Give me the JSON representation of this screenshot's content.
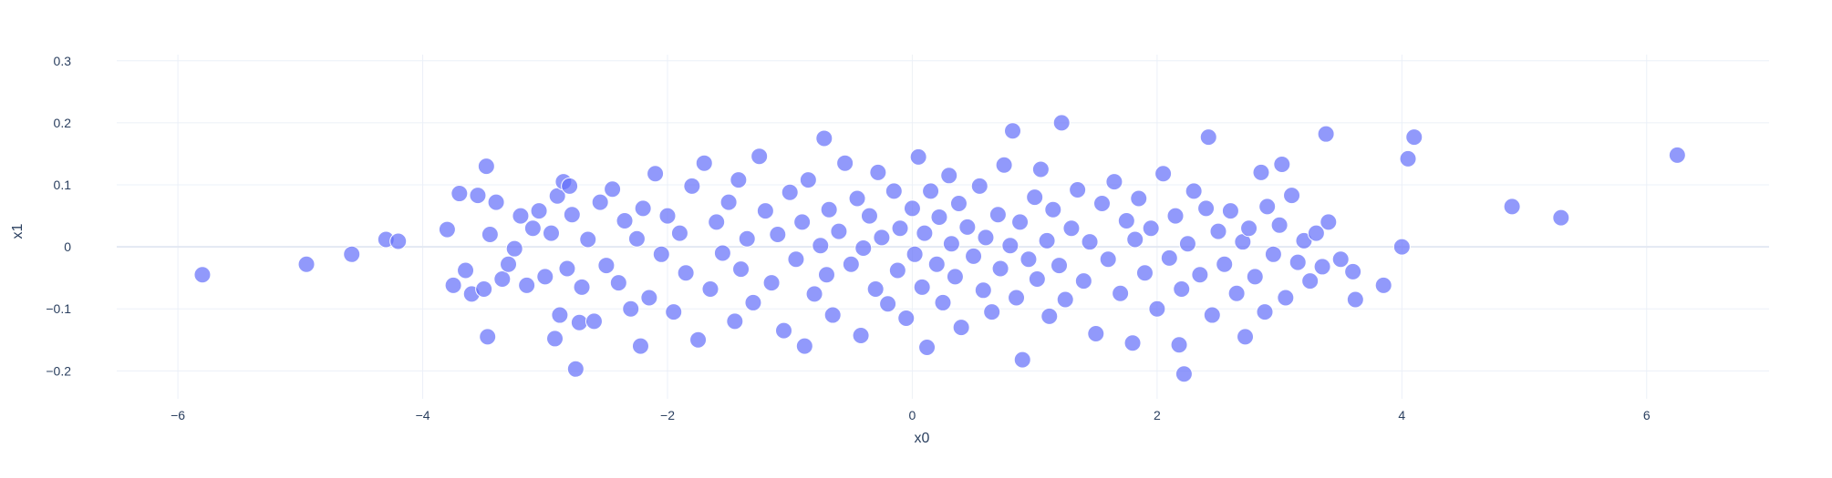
{
  "chart_data": {
    "type": "scatter",
    "xlabel": "x0",
    "ylabel": "x1",
    "xlim": [
      -6.5,
      7.0
    ],
    "ylim": [
      -0.245,
      0.31
    ],
    "x_ticks": [
      -6,
      -4,
      -2,
      0,
      2,
      4,
      6
    ],
    "x_tick_labels": [
      "−6",
      "−4",
      "−2",
      "0",
      "2",
      "4",
      "6"
    ],
    "y_ticks": [
      -0.2,
      -0.1,
      0,
      0.1,
      0.2,
      0.3
    ],
    "y_tick_labels": [
      "−0.2",
      "−0.1",
      "0",
      "0.1",
      "0.2",
      "0.3"
    ],
    "grid": true,
    "marker_color": "#636efa",
    "marker_opacity": 0.7,
    "marker_outline": "#ffffff",
    "marker_size_note": "large circles, uniform size",
    "series": [
      {
        "points": [
          [
            -5.8,
            -0.045
          ],
          [
            -4.95,
            -0.028
          ],
          [
            -4.58,
            -0.012
          ],
          [
            -4.3,
            0.012
          ],
          [
            -4.2,
            0.009
          ],
          [
            -3.8,
            0.028
          ],
          [
            -3.75,
            -0.062
          ],
          [
            -3.7,
            0.086
          ],
          [
            -3.65,
            -0.038
          ],
          [
            -3.6,
            -0.076
          ],
          [
            -3.55,
            0.083
          ],
          [
            -3.5,
            -0.068
          ],
          [
            -3.48,
            0.13
          ],
          [
            -3.47,
            -0.145
          ],
          [
            -3.45,
            0.02
          ],
          [
            -3.4,
            0.072
          ],
          [
            -3.35,
            -0.052
          ],
          [
            -3.3,
            -0.028
          ],
          [
            -3.25,
            -0.003
          ],
          [
            -3.2,
            0.05
          ],
          [
            -3.15,
            -0.062
          ],
          [
            -3.1,
            0.03
          ],
          [
            -3.05,
            0.058
          ],
          [
            -3.0,
            -0.048
          ],
          [
            -2.95,
            0.022
          ],
          [
            -2.92,
            -0.148
          ],
          [
            -2.9,
            0.082
          ],
          [
            -2.88,
            -0.11
          ],
          [
            -2.85,
            0.105
          ],
          [
            -2.82,
            -0.035
          ],
          [
            -2.8,
            0.098
          ],
          [
            -2.78,
            0.052
          ],
          [
            -2.75,
            -0.197
          ],
          [
            -2.72,
            -0.122
          ],
          [
            -2.7,
            -0.065
          ],
          [
            -2.65,
            0.012
          ],
          [
            -2.6,
            -0.12
          ],
          [
            -2.55,
            0.072
          ],
          [
            -2.5,
            -0.03
          ],
          [
            -2.45,
            0.093
          ],
          [
            -2.4,
            -0.058
          ],
          [
            -2.35,
            0.042
          ],
          [
            -2.3,
            -0.1
          ],
          [
            -2.25,
            0.013
          ],
          [
            -2.22,
            -0.16
          ],
          [
            -2.2,
            0.062
          ],
          [
            -2.15,
            -0.082
          ],
          [
            -2.1,
            0.118
          ],
          [
            -2.05,
            -0.012
          ],
          [
            -2.0,
            0.05
          ],
          [
            -1.95,
            -0.105
          ],
          [
            -1.9,
            0.022
          ],
          [
            -1.85,
            -0.042
          ],
          [
            -1.8,
            0.098
          ],
          [
            -1.75,
            -0.15
          ],
          [
            -1.7,
            0.135
          ],
          [
            -1.65,
            -0.068
          ],
          [
            -1.6,
            0.04
          ],
          [
            -1.55,
            -0.01
          ],
          [
            -1.5,
            0.072
          ],
          [
            -1.45,
            -0.12
          ],
          [
            -1.42,
            0.108
          ],
          [
            -1.4,
            -0.036
          ],
          [
            -1.35,
            0.013
          ],
          [
            -1.3,
            -0.09
          ],
          [
            -1.25,
            0.146
          ],
          [
            -1.2,
            0.058
          ],
          [
            -1.15,
            -0.058
          ],
          [
            -1.1,
            0.02
          ],
          [
            -1.05,
            -0.135
          ],
          [
            -1.0,
            0.088
          ],
          [
            -0.95,
            -0.02
          ],
          [
            -0.9,
            0.04
          ],
          [
            -0.88,
            -0.16
          ],
          [
            -0.85,
            0.108
          ],
          [
            -0.8,
            -0.076
          ],
          [
            -0.75,
            0.002
          ],
          [
            -0.72,
            0.175
          ],
          [
            -0.7,
            -0.045
          ],
          [
            -0.68,
            0.06
          ],
          [
            -0.65,
            -0.11
          ],
          [
            -0.6,
            0.025
          ],
          [
            -0.55,
            0.135
          ],
          [
            -0.5,
            -0.028
          ],
          [
            -0.45,
            0.078
          ],
          [
            -0.42,
            -0.143
          ],
          [
            -0.4,
            -0.002
          ],
          [
            -0.35,
            0.05
          ],
          [
            -0.3,
            -0.068
          ],
          [
            -0.28,
            0.12
          ],
          [
            -0.25,
            0.015
          ],
          [
            -0.2,
            -0.092
          ],
          [
            -0.15,
            0.09
          ],
          [
            -0.12,
            -0.038
          ],
          [
            -0.1,
            0.03
          ],
          [
            -0.05,
            -0.115
          ],
          [
            0.0,
            0.062
          ],
          [
            0.02,
            -0.012
          ],
          [
            0.05,
            0.145
          ],
          [
            0.08,
            -0.065
          ],
          [
            0.1,
            0.022
          ],
          [
            0.12,
            -0.162
          ],
          [
            0.15,
            0.09
          ],
          [
            0.2,
            -0.028
          ],
          [
            0.22,
            0.048
          ],
          [
            0.25,
            -0.09
          ],
          [
            0.3,
            0.115
          ],
          [
            0.32,
            0.005
          ],
          [
            0.35,
            -0.048
          ],
          [
            0.38,
            0.07
          ],
          [
            0.4,
            -0.13
          ],
          [
            0.45,
            0.032
          ],
          [
            0.5,
            -0.015
          ],
          [
            0.55,
            0.098
          ],
          [
            0.58,
            -0.07
          ],
          [
            0.6,
            0.015
          ],
          [
            0.65,
            -0.105
          ],
          [
            0.7,
            0.052
          ],
          [
            0.72,
            -0.035
          ],
          [
            0.75,
            0.132
          ],
          [
            0.8,
            0.002
          ],
          [
            0.82,
            0.187
          ],
          [
            0.85,
            -0.082
          ],
          [
            0.88,
            0.04
          ],
          [
            0.9,
            -0.182
          ],
          [
            0.95,
            -0.02
          ],
          [
            1.0,
            0.08
          ],
          [
            1.02,
            -0.052
          ],
          [
            1.05,
            0.125
          ],
          [
            1.1,
            0.01
          ],
          [
            1.12,
            -0.112
          ],
          [
            1.15,
            0.06
          ],
          [
            1.2,
            -0.03
          ],
          [
            1.22,
            0.2
          ],
          [
            1.25,
            -0.085
          ],
          [
            1.3,
            0.03
          ],
          [
            1.35,
            0.092
          ],
          [
            1.4,
            -0.055
          ],
          [
            1.45,
            0.008
          ],
          [
            1.5,
            -0.14
          ],
          [
            1.55,
            0.07
          ],
          [
            1.6,
            -0.02
          ],
          [
            1.65,
            0.105
          ],
          [
            1.7,
            -0.075
          ],
          [
            1.75,
            0.042
          ],
          [
            1.8,
            -0.155
          ],
          [
            1.82,
            0.012
          ],
          [
            1.85,
            0.078
          ],
          [
            1.9,
            -0.042
          ],
          [
            1.95,
            0.03
          ],
          [
            2.0,
            -0.1
          ],
          [
            2.05,
            0.118
          ],
          [
            2.1,
            -0.018
          ],
          [
            2.15,
            0.05
          ],
          [
            2.18,
            -0.158
          ],
          [
            2.2,
            -0.068
          ],
          [
            2.22,
            -0.205
          ],
          [
            2.25,
            0.005
          ],
          [
            2.3,
            0.09
          ],
          [
            2.35,
            -0.045
          ],
          [
            2.4,
            0.062
          ],
          [
            2.42,
            0.177
          ],
          [
            2.45,
            -0.11
          ],
          [
            2.5,
            0.025
          ],
          [
            2.55,
            -0.028
          ],
          [
            2.6,
            0.058
          ],
          [
            2.65,
            -0.075
          ],
          [
            2.7,
            0.008
          ],
          [
            2.72,
            -0.145
          ],
          [
            2.75,
            0.03
          ],
          [
            2.8,
            -0.048
          ],
          [
            2.85,
            0.12
          ],
          [
            2.88,
            -0.105
          ],
          [
            2.9,
            0.065
          ],
          [
            2.95,
            -0.012
          ],
          [
            3.0,
            0.035
          ],
          [
            3.02,
            0.133
          ],
          [
            3.05,
            -0.082
          ],
          [
            3.1,
            0.083
          ],
          [
            3.15,
            -0.025
          ],
          [
            3.2,
            0.01
          ],
          [
            3.25,
            -0.055
          ],
          [
            3.3,
            0.022
          ],
          [
            3.35,
            -0.032
          ],
          [
            3.38,
            0.182
          ],
          [
            3.4,
            0.04
          ],
          [
            3.5,
            -0.02
          ],
          [
            3.6,
            -0.04
          ],
          [
            3.62,
            -0.085
          ],
          [
            3.85,
            -0.062
          ],
          [
            4.0,
            0.0
          ],
          [
            4.05,
            0.142
          ],
          [
            4.1,
            0.177
          ],
          [
            4.9,
            0.065
          ],
          [
            5.3,
            0.047
          ],
          [
            6.25,
            0.148
          ]
        ]
      }
    ]
  }
}
